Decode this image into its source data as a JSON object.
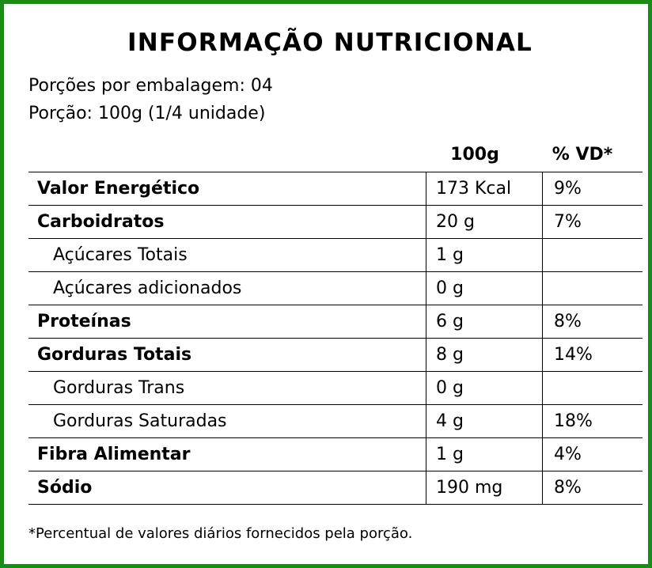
{
  "label": {
    "title": "INFORMAÇÃO NUTRICIONAL",
    "servings_per_package": "Porções por embalagem: 04",
    "serving_size": "Porção: 100g (1/4 unidade)",
    "column_headers": {
      "amount": "100g",
      "daily_value": "% VD*"
    },
    "rows": [
      {
        "name": "Valor Energético",
        "amount": "173 Kcal",
        "dv": "9%",
        "level": "main"
      },
      {
        "name": "Carboidratos",
        "amount": "20 g",
        "dv": "7%",
        "level": "main"
      },
      {
        "name": "Açúcares Totais",
        "amount": "1 g",
        "dv": "",
        "level": "sub"
      },
      {
        "name": "Açúcares adicionados",
        "amount": "0 g",
        "dv": "",
        "level": "sub"
      },
      {
        "name": "Proteínas",
        "amount": "6 g",
        "dv": "8%",
        "level": "main"
      },
      {
        "name": "Gorduras Totais",
        "amount": "8 g",
        "dv": "14%",
        "level": "main"
      },
      {
        "name": "Gorduras Trans",
        "amount": "0 g",
        "dv": "",
        "level": "sub"
      },
      {
        "name": "Gorduras Saturadas",
        "amount": "4 g",
        "dv": "18%",
        "level": "sub"
      },
      {
        "name": "Fibra Alimentar",
        "amount": "1 g",
        "dv": "4%",
        "level": "main"
      },
      {
        "name": "Sódio",
        "amount": "190 mg",
        "dv": "8%",
        "level": "main"
      }
    ],
    "footnote": "*Percentual de valores diários fornecidos pela porção.",
    "colors": {
      "border": "#1a8a1a",
      "text": "#000000",
      "background": "#ffffff"
    }
  }
}
